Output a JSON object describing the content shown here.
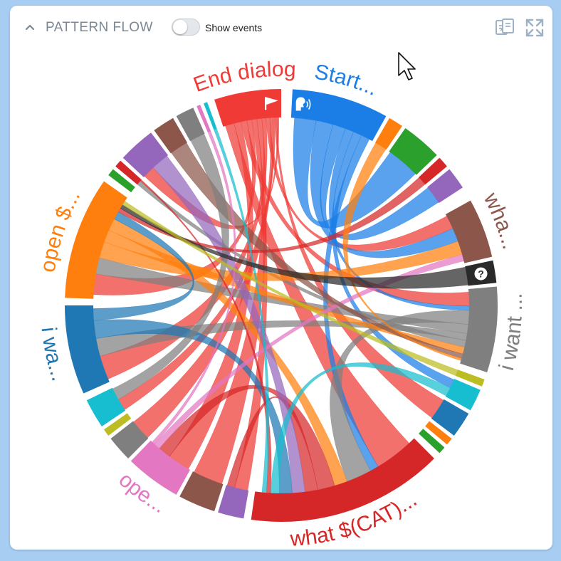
{
  "header": {
    "title": "PATTERN FLOW",
    "toggle_label": "Show events",
    "toggle_on": false,
    "icons": {
      "collapse": "chevron-up-icon",
      "compare": "compare-documents-icon",
      "expand": "expand-icon"
    }
  },
  "chord": {
    "groups": [
      {
        "id": "start",
        "label": "Start...",
        "color": "#1a7ee6",
        "icon": "speaker-person-icon"
      },
      {
        "id": "o1",
        "label": "",
        "color": "#ff7f0e"
      },
      {
        "id": "g1",
        "label": "",
        "color": "#2ca02c"
      },
      {
        "id": "r1",
        "label": "",
        "color": "#d62728"
      },
      {
        "id": "p1",
        "label": "",
        "color": "#9467bd"
      },
      {
        "id": "wha",
        "label": "wha...",
        "color": "#8c564b"
      },
      {
        "id": "help",
        "label": "",
        "color": "#2a2a2a",
        "icon": "question-icon"
      },
      {
        "id": "iwant",
        "label": "i want ...",
        "color": "#7f7f7f"
      },
      {
        "id": "y1",
        "label": "",
        "color": "#bcbd22"
      },
      {
        "id": "c1",
        "label": "",
        "color": "#17becf"
      },
      {
        "id": "b1",
        "label": "",
        "color": "#1f77b4"
      },
      {
        "id": "o2",
        "label": "",
        "color": "#ff7f0e"
      },
      {
        "id": "g2",
        "label": "",
        "color": "#2ca02c"
      },
      {
        "id": "whatcat",
        "label": "what $(CAT)...",
        "color": "#d62728"
      },
      {
        "id": "p2",
        "label": "",
        "color": "#9467bd"
      },
      {
        "id": "br2",
        "label": "",
        "color": "#8c564b"
      },
      {
        "id": "ope",
        "label": "ope...",
        "color": "#e377c2"
      },
      {
        "id": "gr2",
        "label": "",
        "color": "#7f7f7f"
      },
      {
        "id": "y2",
        "label": "",
        "color": "#bcbd22"
      },
      {
        "id": "c2",
        "label": "",
        "color": "#17becf"
      },
      {
        "id": "iwa",
        "label": "i wa...",
        "color": "#1f77b4"
      },
      {
        "id": "open",
        "label": "open $...",
        "color": "#ff7f0e"
      },
      {
        "id": "g3",
        "label": "",
        "color": "#2ca02c"
      },
      {
        "id": "r3",
        "label": "",
        "color": "#d62728"
      },
      {
        "id": "p3",
        "label": "",
        "color": "#9467bd"
      },
      {
        "id": "br3",
        "label": "",
        "color": "#8c564b"
      },
      {
        "id": "gr3",
        "label": "",
        "color": "#7f7f7f"
      },
      {
        "id": "pk3",
        "label": "",
        "color": "#e377c2"
      },
      {
        "id": "c3",
        "label": "",
        "color": "#17becf"
      },
      {
        "id": "end",
        "label": "End dialog",
        "color": "#ef3a35",
        "icon": "flag-icon"
      }
    ],
    "ribbons": [
      {
        "from": "end",
        "to": "whatcat",
        "weight": 9
      },
      {
        "from": "end",
        "to": "ope",
        "weight": 7
      },
      {
        "from": "end",
        "to": "iwant",
        "weight": 6
      },
      {
        "from": "end",
        "to": "open",
        "weight": 5
      },
      {
        "from": "end",
        "to": "p2",
        "weight": 5
      },
      {
        "from": "end",
        "to": "br2",
        "weight": 5
      },
      {
        "from": "end",
        "to": "iwa",
        "weight": 4
      },
      {
        "from": "end",
        "to": "wha",
        "weight": 4
      },
      {
        "from": "end",
        "to": "gr2",
        "weight": 3
      },
      {
        "from": "end",
        "to": "c2",
        "weight": 2
      },
      {
        "from": "end",
        "to": "b1",
        "weight": 2
      },
      {
        "from": "end",
        "to": "p3",
        "weight": 2
      },
      {
        "from": "start",
        "to": "g1",
        "weight": 5
      },
      {
        "from": "start",
        "to": "wha",
        "weight": 4
      },
      {
        "from": "start",
        "to": "p1",
        "weight": 3
      },
      {
        "from": "start",
        "to": "iwant",
        "weight": 2
      },
      {
        "from": "start",
        "to": "c1",
        "weight": 2
      },
      {
        "from": "start",
        "to": "whatcat",
        "weight": 2
      },
      {
        "from": "iwant",
        "to": "whatcat",
        "weight": 6
      },
      {
        "from": "iwant",
        "to": "open",
        "weight": 4
      },
      {
        "from": "iwant",
        "to": "iwa",
        "weight": 3
      },
      {
        "from": "iwant",
        "to": "r3",
        "weight": 3
      },
      {
        "from": "open",
        "to": "wha",
        "weight": 4
      },
      {
        "from": "open",
        "to": "iwant",
        "weight": 3
      },
      {
        "from": "open",
        "to": "whatcat",
        "weight": 3
      },
      {
        "from": "whatcat",
        "to": "ope",
        "weight": 4
      },
      {
        "from": "whatcat",
        "to": "p2",
        "weight": 3
      },
      {
        "from": "p3",
        "to": "whatcat",
        "weight": 3
      },
      {
        "from": "iwa",
        "to": "whatcat",
        "weight": 3
      },
      {
        "from": "iwa",
        "to": "open",
        "weight": 2
      },
      {
        "from": "ope",
        "to": "wha",
        "weight": 2
      },
      {
        "from": "br3",
        "to": "iwant",
        "weight": 2
      },
      {
        "from": "gr3",
        "to": "c2",
        "weight": 2
      },
      {
        "from": "c1",
        "to": "whatcat",
        "weight": 2
      },
      {
        "from": "r1",
        "to": "open",
        "weight": 1
      },
      {
        "from": "o1",
        "to": "iwant",
        "weight": 1
      },
      {
        "from": "r3",
        "to": "whatcat",
        "weight": 1
      },
      {
        "from": "pk3",
        "to": "ope",
        "weight": 1
      },
      {
        "from": "c3",
        "to": "whatcat",
        "weight": 1
      },
      {
        "from": "help",
        "to": "open",
        "weight": 1
      },
      {
        "from": "y1",
        "to": "open",
        "weight": 1
      }
    ]
  }
}
